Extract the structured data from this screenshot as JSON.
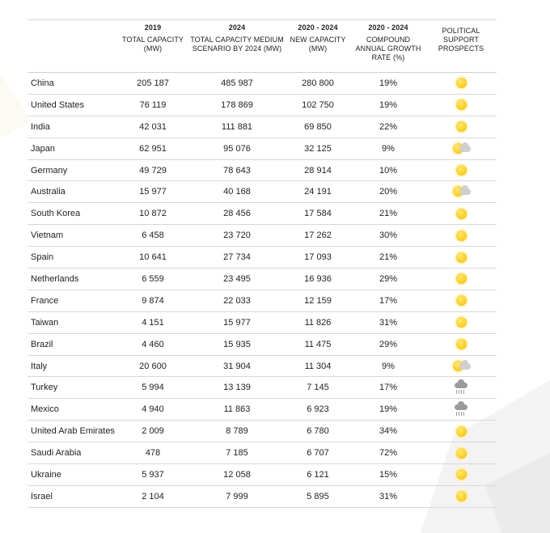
{
  "headers": [
    {
      "year": "",
      "label": ""
    },
    {
      "year": "2019",
      "label": "TOTAL CAPACITY (MW)"
    },
    {
      "year": "2024",
      "label": "TOTAL CAPACITY MEDIUM SCENARIO BY 2024 (MW)"
    },
    {
      "year": "2020 - 2024",
      "label": "NEW CAPACITY (MW)"
    },
    {
      "year": "2020 - 2024",
      "label": "COMPOUND ANNUAL GROWTH RATE (%)"
    },
    {
      "year": "",
      "label": "POLITICAL SUPPORT PROSPECTS"
    }
  ],
  "rows": [
    {
      "country": "China",
      "cap2019": "205 187",
      "cap2024": "485 987",
      "new": "280 800",
      "cagr": "19%",
      "icon": "sun-icon"
    },
    {
      "country": "United States",
      "cap2019": "76 119",
      "cap2024": "178 869",
      "new": "102 750",
      "cagr": "19%",
      "icon": "sun-icon"
    },
    {
      "country": "India",
      "cap2019": "42 031",
      "cap2024": "111 881",
      "new": "69 850",
      "cagr": "22%",
      "icon": "sun-icon"
    },
    {
      "country": "Japan",
      "cap2019": "62 951",
      "cap2024": "95 076",
      "new": "32 125",
      "cagr": "9%",
      "icon": "sun-cloud-icon"
    },
    {
      "country": "Germany",
      "cap2019": "49 729",
      "cap2024": "78 643",
      "new": "28 914",
      "cagr": "10%",
      "icon": "sun-icon"
    },
    {
      "country": "Australia",
      "cap2019": "15 977",
      "cap2024": "40 168",
      "new": "24 191",
      "cagr": "20%",
      "icon": "sun-cloud-icon"
    },
    {
      "country": "South Korea",
      "cap2019": "10 872",
      "cap2024": "28 456",
      "new": "17 584",
      "cagr": "21%",
      "icon": "sun-icon"
    },
    {
      "country": "Vietnam",
      "cap2019": "6 458",
      "cap2024": "23 720",
      "new": "17 262",
      "cagr": "30%",
      "icon": "sun-icon"
    },
    {
      "country": "Spain",
      "cap2019": "10 641",
      "cap2024": "27 734",
      "new": "17 093",
      "cagr": "21%",
      "icon": "sun-icon"
    },
    {
      "country": "Netherlands",
      "cap2019": "6 559",
      "cap2024": "23 495",
      "new": "16 936",
      "cagr": "29%",
      "icon": "sun-icon"
    },
    {
      "country": "France",
      "cap2019": "9 874",
      "cap2024": "22 033",
      "new": "12 159",
      "cagr": "17%",
      "icon": "sun-icon"
    },
    {
      "country": "Taiwan",
      "cap2019": "4 151",
      "cap2024": "15 977",
      "new": "11 826",
      "cagr": "31%",
      "icon": "sun-icon"
    },
    {
      "country": "Brazil",
      "cap2019": "4 460",
      "cap2024": "15 935",
      "new": "11 475",
      "cagr": "29%",
      "icon": "sun-icon"
    },
    {
      "country": "Italy",
      "cap2019": "20 600",
      "cap2024": "31 904",
      "new": "11 304",
      "cagr": "9%",
      "icon": "sun-cloud-icon"
    },
    {
      "country": "Turkey",
      "cap2019": "5 994",
      "cap2024": "13 139",
      "new": "7 145",
      "cagr": "17%",
      "icon": "rain-cloud-icon"
    },
    {
      "country": "Mexico",
      "cap2019": "4 940",
      "cap2024": "11 863",
      "new": "6 923",
      "cagr": "19%",
      "icon": "rain-cloud-icon"
    },
    {
      "country": "United Arab Emirates",
      "cap2019": "2 009",
      "cap2024": "8 789",
      "new": "6 780",
      "cagr": "34%",
      "icon": "sun-icon"
    },
    {
      "country": "Saudi Arabia",
      "cap2019": "478",
      "cap2024": "7 185",
      "new": "6 707",
      "cagr": "72%",
      "icon": "sun-icon"
    },
    {
      "country": "Ukraine",
      "cap2019": "5 937",
      "cap2024": "12 058",
      "new": "6 121",
      "cagr": "15%",
      "icon": "sun-icon"
    },
    {
      "country": "Israel",
      "cap2019": "2 104",
      "cap2024": "7 999",
      "new": "5 895",
      "cagr": "31%",
      "icon": "sun-icon"
    }
  ],
  "colors": {
    "sun": "#ffd21f",
    "cloud_light": "#cfcfcf",
    "cloud_rain": "#9a9a9a",
    "rule": "#d8d8d8"
  }
}
